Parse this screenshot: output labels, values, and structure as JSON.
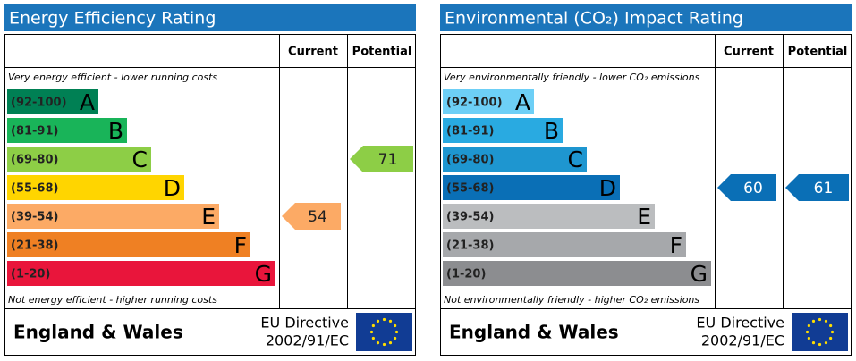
{
  "panels": [
    {
      "title": "Energy Efficiency Rating",
      "col_current": "Current",
      "col_potential": "Potential",
      "top_note": "Very energy efficient - lower running costs",
      "bottom_note": "Not energy efficient - higher running costs",
      "bands": [
        {
          "range": "(92-100)",
          "letter": "A",
          "color": "#008054"
        },
        {
          "range": "(81-91)",
          "letter": "B",
          "color": "#19b459"
        },
        {
          "range": "(69-80)",
          "letter": "C",
          "color": "#8dce46"
        },
        {
          "range": "(55-68)",
          "letter": "D",
          "color": "#ffd500"
        },
        {
          "range": "(39-54)",
          "letter": "E",
          "color": "#fcaa65"
        },
        {
          "range": "(21-38)",
          "letter": "F",
          "color": "#ef8023"
        },
        {
          "range": "(1-20)",
          "letter": "G",
          "color": "#e9153b"
        }
      ],
      "current": 54,
      "potential": 71,
      "region": "England & Wales",
      "directive": [
        "EU Directive",
        "2002/91/EC"
      ]
    },
    {
      "title": "Environmental (CO₂) Impact Rating",
      "col_current": "Current",
      "col_potential": "Potential",
      "top_note": "Very environmentally friendly - lower CO₂ emissions",
      "bottom_note": "Not environmentally friendly - higher CO₂ emissions",
      "bands": [
        {
          "range": "(92-100)",
          "letter": "A",
          "color": "#6dcff6"
        },
        {
          "range": "(81-91)",
          "letter": "B",
          "color": "#29aae1"
        },
        {
          "range": "(69-80)",
          "letter": "C",
          "color": "#1e96d0"
        },
        {
          "range": "(55-68)",
          "letter": "D",
          "color": "#0a6fb6"
        },
        {
          "range": "(39-54)",
          "letter": "E",
          "color": "#bbbdbf"
        },
        {
          "range": "(21-38)",
          "letter": "F",
          "color": "#a6a8ab"
        },
        {
          "range": "(1-20)",
          "letter": "G",
          "color": "#8c8d90"
        }
      ],
      "current": 60,
      "potential": 61,
      "region": "England & Wales",
      "directive": [
        "EU Directive",
        "2002/91/EC"
      ]
    }
  ]
}
